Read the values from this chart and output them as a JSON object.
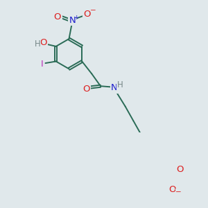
{
  "background_color": "#e0e8eb",
  "bond_color": "#2a6b56",
  "colors": {
    "O": "#dc1e1e",
    "N": "#1e1ecc",
    "I": "#bb33bb",
    "H": "#778888",
    "C": "#2a6b56"
  },
  "figsize": [
    3.0,
    3.0
  ],
  "dpi": 100,
  "lw": 1.4,
  "fs": 8.5
}
